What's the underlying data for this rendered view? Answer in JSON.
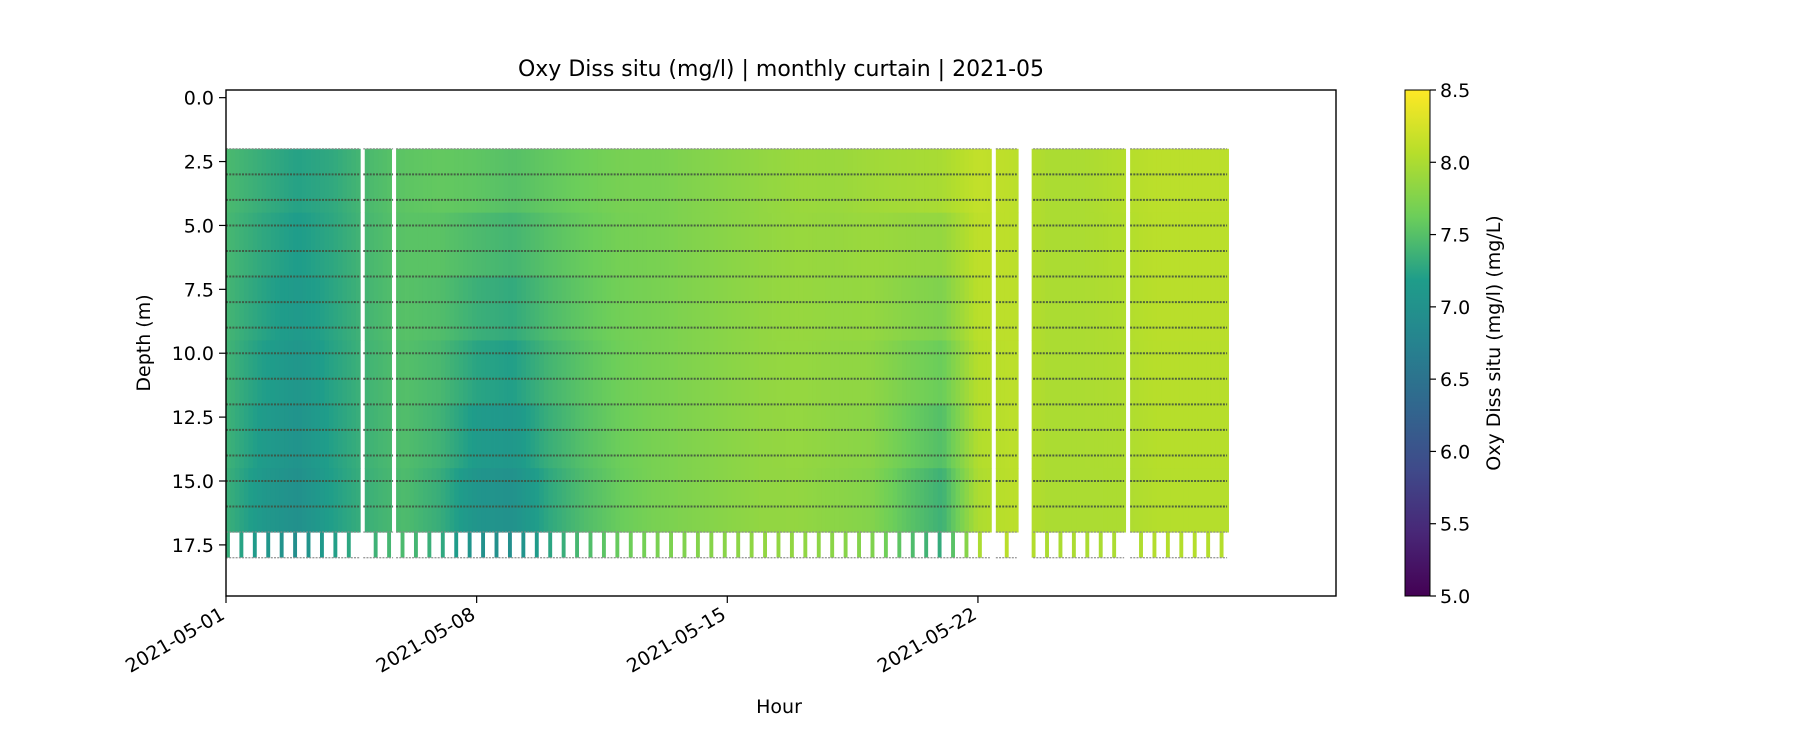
{
  "chart_data": {
    "type": "heatmap",
    "title": "Oxy Diss situ (mg/l) | monthly curtain | 2021-05",
    "xlabel": "Hour",
    "ylabel": "Depth (m)",
    "x_range": [
      "2021-05-01",
      "2021-06-01"
    ],
    "y_range": [
      19.5,
      -0.3
    ],
    "y_inverted": true,
    "x_ticks": [
      "2021-05-01",
      "2021-05-08",
      "2021-05-15",
      "2021-05-22"
    ],
    "y_ticks": [
      0.0,
      2.5,
      5.0,
      7.5,
      10.0,
      12.5,
      15.0,
      17.5
    ],
    "y_tick_labels": [
      "0.0",
      "2.5",
      "5.0",
      "7.5",
      "10.0",
      "12.5",
      "15.0",
      "17.5"
    ],
    "grid": false,
    "data_coverage": {
      "start": "2021-05-01",
      "end": "2021-05-28T23:00",
      "top_depth": 2.0,
      "bottom_depth": 17.0,
      "gaps": [
        [
          "2021-05-04T18:00",
          "2021-05-04T20:00"
        ],
        [
          "2021-05-05T16:00",
          "2021-05-05T18:00"
        ],
        [
          "2021-05-22T08:00",
          "2021-05-22T12:00"
        ],
        [
          "2021-05-23T02:00",
          "2021-05-23T13:00"
        ],
        [
          "2021-05-26T02:00",
          "2021-05-26T06:00"
        ]
      ]
    },
    "sample_depths": [
      2,
      3,
      4,
      5,
      6,
      7,
      8,
      9,
      10,
      11,
      12,
      13,
      14,
      15,
      16,
      17,
      18
    ],
    "approx_values_by_day": {
      "days": [
        "05-01",
        "05-02",
        "05-03",
        "05-04",
        "05-05",
        "05-06",
        "05-07",
        "05-08",
        "05-09",
        "05-10",
        "05-11",
        "05-12",
        "05-13",
        "05-14",
        "05-15",
        "05-16",
        "05-17",
        "05-18",
        "05-19",
        "05-20",
        "05-21",
        "05-22",
        "05-23",
        "05-24",
        "05-25",
        "05-26",
        "05-27",
        "05-28"
      ],
      "surface_mg_l": [
        7.45,
        7.35,
        7.25,
        7.3,
        7.45,
        7.55,
        7.6,
        7.6,
        7.55,
        7.6,
        7.65,
        7.7,
        7.7,
        7.75,
        7.8,
        7.85,
        7.9,
        7.9,
        7.95,
        8.0,
        8.05,
        8.15,
        8.1,
        8.0,
        8.0,
        8.05,
        8.1,
        8.1
      ],
      "bottom_mg_l": [
        7.35,
        7.1,
        6.95,
        7.2,
        7.35,
        7.45,
        7.3,
        7.0,
        6.95,
        7.25,
        7.45,
        7.6,
        7.7,
        7.75,
        7.8,
        7.85,
        7.85,
        7.8,
        7.75,
        7.5,
        7.3,
        8.0,
        8.1,
        8.0,
        8.0,
        8.0,
        8.05,
        8.05
      ]
    },
    "colorbar": {
      "label": "Oxy Diss situ (mg/l) (mg/L)",
      "colormap": "viridis",
      "min": 5.0,
      "max": 8.5,
      "ticks": [
        5.0,
        5.5,
        6.0,
        6.5,
        7.0,
        7.5,
        8.0,
        8.5
      ],
      "tick_labels": [
        "5.0",
        "5.5",
        "6.0",
        "6.5",
        "7.0",
        "7.5",
        "8.0",
        "8.5"
      ]
    },
    "viridis_stops": [
      "#440154",
      "#482777",
      "#3f4a8a",
      "#31678e",
      "#26838f",
      "#1f9d8a",
      "#6cce5a",
      "#b6de2b",
      "#fee825"
    ]
  }
}
